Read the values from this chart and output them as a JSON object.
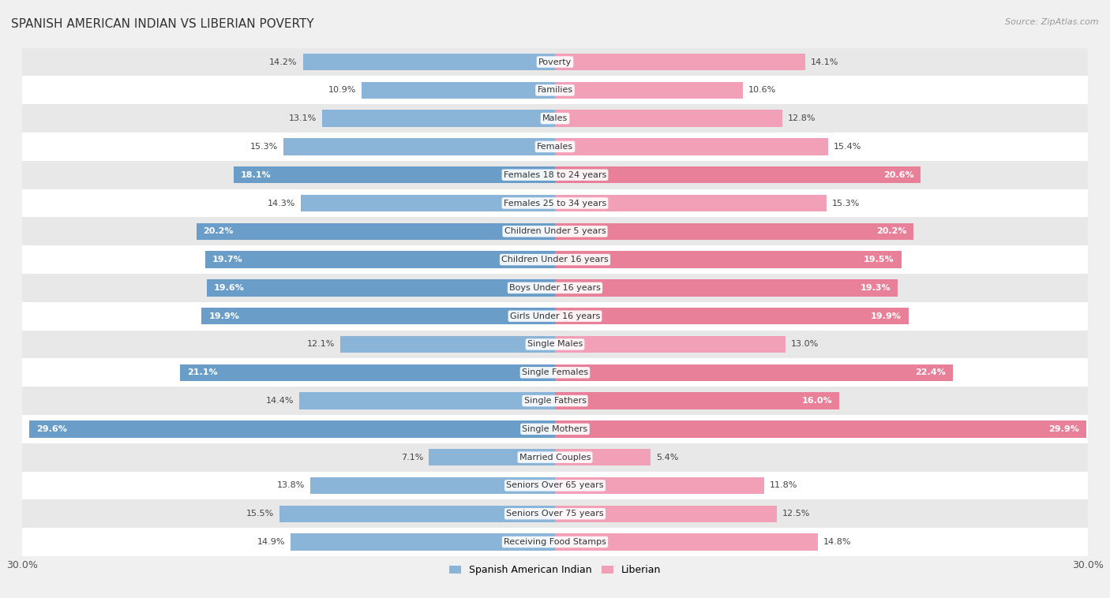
{
  "title": "SPANISH AMERICAN INDIAN VS LIBERIAN POVERTY",
  "source": "Source: ZipAtlas.com",
  "categories": [
    "Poverty",
    "Families",
    "Males",
    "Females",
    "Females 18 to 24 years",
    "Females 25 to 34 years",
    "Children Under 5 years",
    "Children Under 16 years",
    "Boys Under 16 years",
    "Girls Under 16 years",
    "Single Males",
    "Single Females",
    "Single Fathers",
    "Single Mothers",
    "Married Couples",
    "Seniors Over 65 years",
    "Seniors Over 75 years",
    "Receiving Food Stamps"
  ],
  "left_values": [
    14.2,
    10.9,
    13.1,
    15.3,
    18.1,
    14.3,
    20.2,
    19.7,
    19.6,
    19.9,
    12.1,
    21.1,
    14.4,
    29.6,
    7.1,
    13.8,
    15.5,
    14.9
  ],
  "right_values": [
    14.1,
    10.6,
    12.8,
    15.4,
    20.6,
    15.3,
    20.2,
    19.5,
    19.3,
    19.9,
    13.0,
    22.4,
    16.0,
    29.9,
    5.4,
    11.8,
    12.5,
    14.8
  ],
  "left_color": "#8ab4d8",
  "right_color": "#f2a0b8",
  "left_color_dark": "#6a9ec8",
  "right_color_dark": "#e8809a",
  "left_label": "Spanish American Indian",
  "right_label": "Liberian",
  "axis_max": 30.0,
  "bg_color": "#f0f0f0",
  "row_bg_light": "#ffffff",
  "row_bg_dark": "#e8e8e8",
  "bar_height": 0.6,
  "inside_threshold": 16.0,
  "title_fontsize": 11,
  "tick_fontsize": 9,
  "label_fontsize": 8,
  "cat_fontsize": 8
}
